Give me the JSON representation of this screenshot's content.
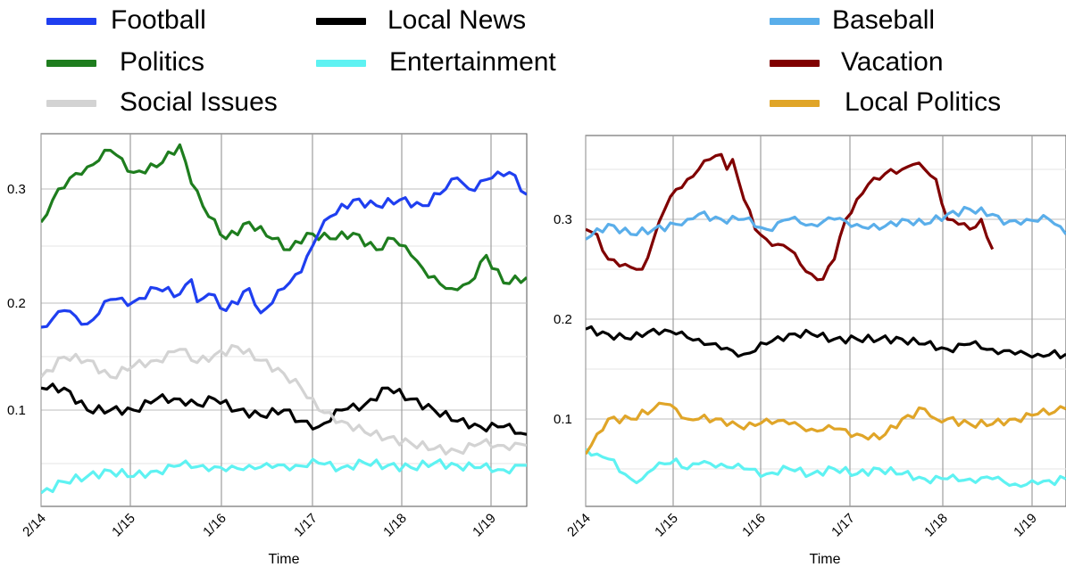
{
  "legend_left": [
    {
      "label": "Football",
      "color": "#1f3ff0"
    },
    {
      "label": "Local News",
      "color": "#000000"
    },
    {
      "label": "Politics",
      "color": "#1e7d1e"
    },
    {
      "label": "Entertainment",
      "color": "#5ef2f2"
    },
    {
      "label": "Social Issues",
      "color": "#d3d3d3"
    }
  ],
  "legend_right": [
    {
      "label": "Baseball",
      "color": "#5aaeea"
    },
    {
      "label": "Vacation",
      "color": "#800000"
    },
    {
      "label": "Local Politics",
      "color": "#e0a528"
    }
  ],
  "chart_data": [
    {
      "type": "line",
      "xlabel": "Time",
      "x_ticks": [
        "2/14",
        "1/15",
        "1/16",
        "1/17",
        "1/18",
        "1/19"
      ],
      "x_range": [
        "2/14",
        "4/19"
      ],
      "y_ticks": [
        "0.1",
        "0.2",
        "0.3"
      ],
      "ylim": [
        0.025,
        0.35
      ],
      "grid": true,
      "series": [
        {
          "name": "Football",
          "color": "#1f3ff0",
          "points": [
            [
              0,
              0.175
            ],
            [
              4,
              0.19
            ],
            [
              8,
              0.178
            ],
            [
              12,
              0.2
            ],
            [
              16,
              0.198
            ],
            [
              20,
              0.21
            ],
            [
              24,
              0.205
            ],
            [
              26,
              0.218
            ],
            [
              27,
              0.198
            ],
            [
              29,
              0.205
            ],
            [
              32,
              0.19
            ],
            [
              36,
              0.21
            ],
            [
              38,
              0.188
            ],
            [
              42,
              0.21
            ],
            [
              45,
              0.225
            ],
            [
              48,
              0.26
            ],
            [
              50,
              0.275
            ],
            [
              54,
              0.29
            ],
            [
              58,
              0.285
            ],
            [
              62,
              0.29
            ],
            [
              66,
              0.285
            ],
            [
              70,
              0.3
            ],
            [
              72,
              0.31
            ],
            [
              74,
              0.3
            ],
            [
              78,
              0.31
            ],
            [
              81,
              0.315
            ],
            [
              84,
              0.295
            ]
          ]
        },
        {
          "name": "Politics",
          "color": "#1e7d1e",
          "points": [
            [
              0,
              0.27
            ],
            [
              3,
              0.3
            ],
            [
              5,
              0.31
            ],
            [
              8,
              0.32
            ],
            [
              12,
              0.335
            ],
            [
              16,
              0.315
            ],
            [
              20,
              0.32
            ],
            [
              24,
              0.34
            ],
            [
              26,
              0.305
            ],
            [
              29,
              0.275
            ],
            [
              32,
              0.255
            ],
            [
              36,
              0.27
            ],
            [
              40,
              0.255
            ],
            [
              43,
              0.245
            ],
            [
              46,
              0.26
            ],
            [
              50,
              0.255
            ],
            [
              54,
              0.26
            ],
            [
              58,
              0.245
            ],
            [
              61,
              0.255
            ],
            [
              64,
              0.24
            ],
            [
              67,
              0.22
            ],
            [
              71,
              0.21
            ],
            [
              74,
              0.215
            ],
            [
              77,
              0.24
            ],
            [
              80,
              0.215
            ],
            [
              84,
              0.22
            ]
          ]
        },
        {
          "name": "Social Issues",
          "color": "#d3d3d3",
          "points": [
            [
              0,
              0.13
            ],
            [
              4,
              0.148
            ],
            [
              8,
              0.145
            ],
            [
              12,
              0.13
            ],
            [
              16,
              0.14
            ],
            [
              20,
              0.145
            ],
            [
              24,
              0.155
            ],
            [
              27,
              0.143
            ],
            [
              30,
              0.15
            ],
            [
              34,
              0.157
            ],
            [
              38,
              0.145
            ],
            [
              42,
              0.133
            ],
            [
              45,
              0.12
            ],
            [
              48,
              0.1
            ],
            [
              52,
              0.09
            ],
            [
              56,
              0.08
            ],
            [
              60,
              0.075
            ],
            [
              64,
              0.07
            ],
            [
              68,
              0.065
            ],
            [
              72,
              0.063
            ],
            [
              76,
              0.07
            ],
            [
              80,
              0.068
            ],
            [
              84,
              0.068
            ]
          ]
        },
        {
          "name": "Local News",
          "color": "#000000",
          "points": [
            [
              0,
              0.12
            ],
            [
              4,
              0.12
            ],
            [
              8,
              0.1
            ],
            [
              12,
              0.1
            ],
            [
              16,
              0.1
            ],
            [
              20,
              0.11
            ],
            [
              24,
              0.11
            ],
            [
              27,
              0.105
            ],
            [
              30,
              0.11
            ],
            [
              34,
              0.1
            ],
            [
              38,
              0.095
            ],
            [
              42,
              0.1
            ],
            [
              45,
              0.09
            ],
            [
              48,
              0.085
            ],
            [
              52,
              0.1
            ],
            [
              56,
              0.105
            ],
            [
              60,
              0.12
            ],
            [
              64,
              0.11
            ],
            [
              68,
              0.1
            ],
            [
              72,
              0.09
            ],
            [
              76,
              0.085
            ],
            [
              80,
              0.085
            ],
            [
              84,
              0.078
            ]
          ]
        },
        {
          "name": "Entertainment",
          "color": "#5ef2f2",
          "points": [
            [
              0,
              0.025
            ],
            [
              4,
              0.035
            ],
            [
              8,
              0.04
            ],
            [
              12,
              0.045
            ],
            [
              16,
              0.04
            ],
            [
              20,
              0.045
            ],
            [
              24,
              0.05
            ],
            [
              28,
              0.05
            ],
            [
              32,
              0.045
            ],
            [
              36,
              0.05
            ],
            [
              40,
              0.048
            ],
            [
              44,
              0.05
            ],
            [
              48,
              0.052
            ],
            [
              52,
              0.048
            ],
            [
              56,
              0.052
            ],
            [
              60,
              0.05
            ],
            [
              64,
              0.048
            ],
            [
              68,
              0.052
            ],
            [
              72,
              0.05
            ],
            [
              76,
              0.048
            ],
            [
              80,
              0.046
            ],
            [
              84,
              0.05
            ]
          ]
        }
      ]
    },
    {
      "type": "line",
      "xlabel": "Time",
      "x_ticks": [
        "2/14",
        "1/15",
        "1/16",
        "1/17",
        "1/18",
        "1/19"
      ],
      "x_range": [
        "2/14",
        "4/19"
      ],
      "y_ticks": [
        "0.1",
        "0.2",
        "0.3"
      ],
      "ylim": [
        0.025,
        0.375
      ],
      "grid": true,
      "series": [
        {
          "name": "Baseball",
          "color": "#5aaeea",
          "points": [
            [
              0,
              0.28
            ],
            [
              4,
              0.295
            ],
            [
              8,
              0.285
            ],
            [
              12,
              0.29
            ],
            [
              16,
              0.295
            ],
            [
              18,
              0.3
            ],
            [
              20,
              0.305
            ],
            [
              24,
              0.3
            ],
            [
              28,
              0.3
            ],
            [
              32,
              0.29
            ],
            [
              36,
              0.3
            ],
            [
              40,
              0.295
            ],
            [
              44,
              0.3
            ],
            [
              48,
              0.295
            ],
            [
              52,
              0.29
            ],
            [
              56,
              0.3
            ],
            [
              60,
              0.295
            ],
            [
              64,
              0.305
            ],
            [
              68,
              0.31
            ],
            [
              72,
              0.305
            ],
            [
              74,
              0.295
            ],
            [
              78,
              0.3
            ],
            [
              82,
              0.3
            ],
            [
              85,
              0.285
            ]
          ]
        },
        {
          "name": "Vacation",
          "color": "#800000",
          "points": [
            [
              0,
              0.29
            ],
            [
              2,
              0.285
            ],
            [
              4,
              0.26
            ],
            [
              7,
              0.255
            ],
            [
              10,
              0.25
            ],
            [
              12,
              0.28
            ],
            [
              14,
              0.31
            ],
            [
              16,
              0.33
            ],
            [
              18,
              0.34
            ],
            [
              20,
              0.35
            ],
            [
              22,
              0.36
            ],
            [
              24,
              0.365
            ],
            [
              25,
              0.35
            ],
            [
              26,
              0.36
            ],
            [
              28,
              0.32
            ],
            [
              30,
              0.29
            ],
            [
              32,
              0.28
            ],
            [
              34,
              0.275
            ],
            [
              36,
              0.27
            ],
            [
              38,
              0.255
            ],
            [
              40,
              0.245
            ],
            [
              42,
              0.24
            ],
            [
              44,
              0.26
            ],
            [
              46,
              0.3
            ],
            [
              48,
              0.32
            ],
            [
              50,
              0.335
            ],
            [
              52,
              0.34
            ],
            [
              54,
              0.35
            ],
            [
              56,
              0.35
            ],
            [
              58,
              0.355
            ],
            [
              60,
              0.35
            ],
            [
              62,
              0.34
            ],
            [
              64,
              0.3
            ],
            [
              66,
              0.295
            ],
            [
              68,
              0.29
            ],
            [
              70,
              0.3
            ],
            [
              72,
              0.27
            ]
          ]
        },
        {
          "name": "Local News",
          "color": "#000000",
          "points": [
            [
              0,
              0.19
            ],
            [
              4,
              0.185
            ],
            [
              8,
              0.18
            ],
            [
              12,
              0.19
            ],
            [
              16,
              0.185
            ],
            [
              20,
              0.18
            ],
            [
              24,
              0.17
            ],
            [
              28,
              0.165
            ],
            [
              32,
              0.175
            ],
            [
              36,
              0.185
            ],
            [
              40,
              0.185
            ],
            [
              44,
              0.18
            ],
            [
              48,
              0.18
            ],
            [
              52,
              0.18
            ],
            [
              56,
              0.18
            ],
            [
              60,
              0.175
            ],
            [
              64,
              0.17
            ],
            [
              68,
              0.175
            ],
            [
              72,
              0.17
            ],
            [
              76,
              0.165
            ],
            [
              80,
              0.165
            ],
            [
              85,
              0.165
            ]
          ]
        },
        {
          "name": "Local Politics",
          "color": "#e0a528",
          "points": [
            [
              0,
              0.065
            ],
            [
              2,
              0.085
            ],
            [
              4,
              0.1
            ],
            [
              8,
              0.1
            ],
            [
              12,
              0.11
            ],
            [
              14,
              0.115
            ],
            [
              16,
              0.11
            ],
            [
              18,
              0.1
            ],
            [
              20,
              0.1
            ],
            [
              24,
              0.1
            ],
            [
              28,
              0.09
            ],
            [
              32,
              0.1
            ],
            [
              36,
              0.095
            ],
            [
              40,
              0.09
            ],
            [
              44,
              0.09
            ],
            [
              48,
              0.085
            ],
            [
              52,
              0.08
            ],
            [
              56,
              0.1
            ],
            [
              60,
              0.11
            ],
            [
              62,
              0.1
            ],
            [
              64,
              0.1
            ],
            [
              68,
              0.095
            ],
            [
              72,
              0.095
            ],
            [
              76,
              0.1
            ],
            [
              80,
              0.105
            ],
            [
              85,
              0.11
            ]
          ]
        },
        {
          "name": "Entertainment",
          "color": "#5ef2f2",
          "points": [
            [
              0,
              0.07
            ],
            [
              2,
              0.065
            ],
            [
              4,
              0.06
            ],
            [
              8,
              0.04
            ],
            [
              10,
              0.04
            ],
            [
              12,
              0.05
            ],
            [
              14,
              0.055
            ],
            [
              16,
              0.06
            ],
            [
              18,
              0.05
            ],
            [
              20,
              0.055
            ],
            [
              24,
              0.055
            ],
            [
              28,
              0.05
            ],
            [
              32,
              0.045
            ],
            [
              36,
              0.05
            ],
            [
              40,
              0.045
            ],
            [
              44,
              0.05
            ],
            [
              48,
              0.045
            ],
            [
              52,
              0.05
            ],
            [
              56,
              0.045
            ],
            [
              60,
              0.04
            ],
            [
              64,
              0.04
            ],
            [
              68,
              0.04
            ],
            [
              72,
              0.04
            ],
            [
              76,
              0.035
            ],
            [
              80,
              0.035
            ],
            [
              85,
              0.04
            ]
          ]
        }
      ]
    }
  ]
}
